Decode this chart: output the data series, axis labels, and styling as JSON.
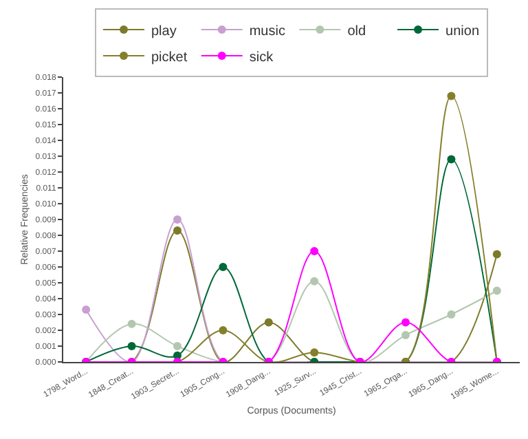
{
  "chart_data": {
    "type": "line",
    "xlabel": "Corpus (Documents)",
    "ylabel": "Relative Frequencies",
    "categories": [
      "1798_Word...",
      "1848_Creat...",
      "1903_Secret...",
      "1905_Cong...",
      "1908_Dang...",
      "1925_Surv...",
      "1945_Crist...",
      "1965_Orga...",
      "1965_Dang...",
      "1995_Wome..."
    ],
    "series": [
      {
        "name": "play",
        "color": "#7d7a2a",
        "values": [
          0,
          0,
          0.0083,
          0,
          0.0025,
          0,
          0,
          0,
          0,
          0.0068
        ]
      },
      {
        "name": "music",
        "color": "#c8a0d0",
        "values": [
          0.0033,
          0,
          0.009,
          0,
          0,
          0,
          0,
          0,
          0,
          0
        ]
      },
      {
        "name": "old",
        "color": "#b3c7b0",
        "values": [
          0,
          0.0024,
          0.001,
          0,
          0,
          0.0051,
          0,
          0.0017,
          0.003,
          0.0045
        ]
      },
      {
        "name": "union",
        "color": "#006838",
        "values": [
          0,
          0.001,
          0.0004,
          0.006,
          0,
          0,
          0,
          0,
          0.0128,
          0
        ]
      },
      {
        "name": "picket",
        "color": "#857f2b",
        "values": [
          0,
          0,
          0,
          0.002,
          0,
          0.0006,
          0,
          0,
          0.0168,
          0
        ]
      },
      {
        "name": "sick",
        "color": "#ff00ff",
        "values": [
          0,
          0,
          0,
          0,
          0,
          0.007,
          0,
          0.0025,
          0,
          0
        ]
      }
    ],
    "ylim": [
      0,
      0.018
    ],
    "yticks": [
      {
        "value": 0,
        "label": "0.000"
      },
      {
        "value": 0.001,
        "label": "0.001"
      },
      {
        "value": 0.002,
        "label": "0.002"
      },
      {
        "value": 0.003,
        "label": "0.003"
      },
      {
        "value": 0.004,
        "label": "0.004"
      },
      {
        "value": 0.005,
        "label": "0.005"
      },
      {
        "value": 0.006,
        "label": "0.006"
      },
      {
        "value": 0.007,
        "label": "0.007"
      },
      {
        "value": 0.008,
        "label": "0.008"
      },
      {
        "value": 0.009,
        "label": "0.009"
      },
      {
        "value": 0.01,
        "label": "0.010"
      },
      {
        "value": 0.011,
        "label": "0.011"
      },
      {
        "value": 0.012,
        "label": "0.012"
      },
      {
        "value": 0.013,
        "label": "0.013"
      },
      {
        "value": 0.014,
        "label": "0.014"
      },
      {
        "value": 0.015,
        "label": "0.015"
      },
      {
        "value": 0.016,
        "label": "0.016"
      },
      {
        "value": 0.017,
        "label": "0.017"
      },
      {
        "value": 0.018,
        "label": "0.018"
      }
    ],
    "grid": false,
    "legend": "top",
    "marker": "circle",
    "line_style": "solid"
  }
}
